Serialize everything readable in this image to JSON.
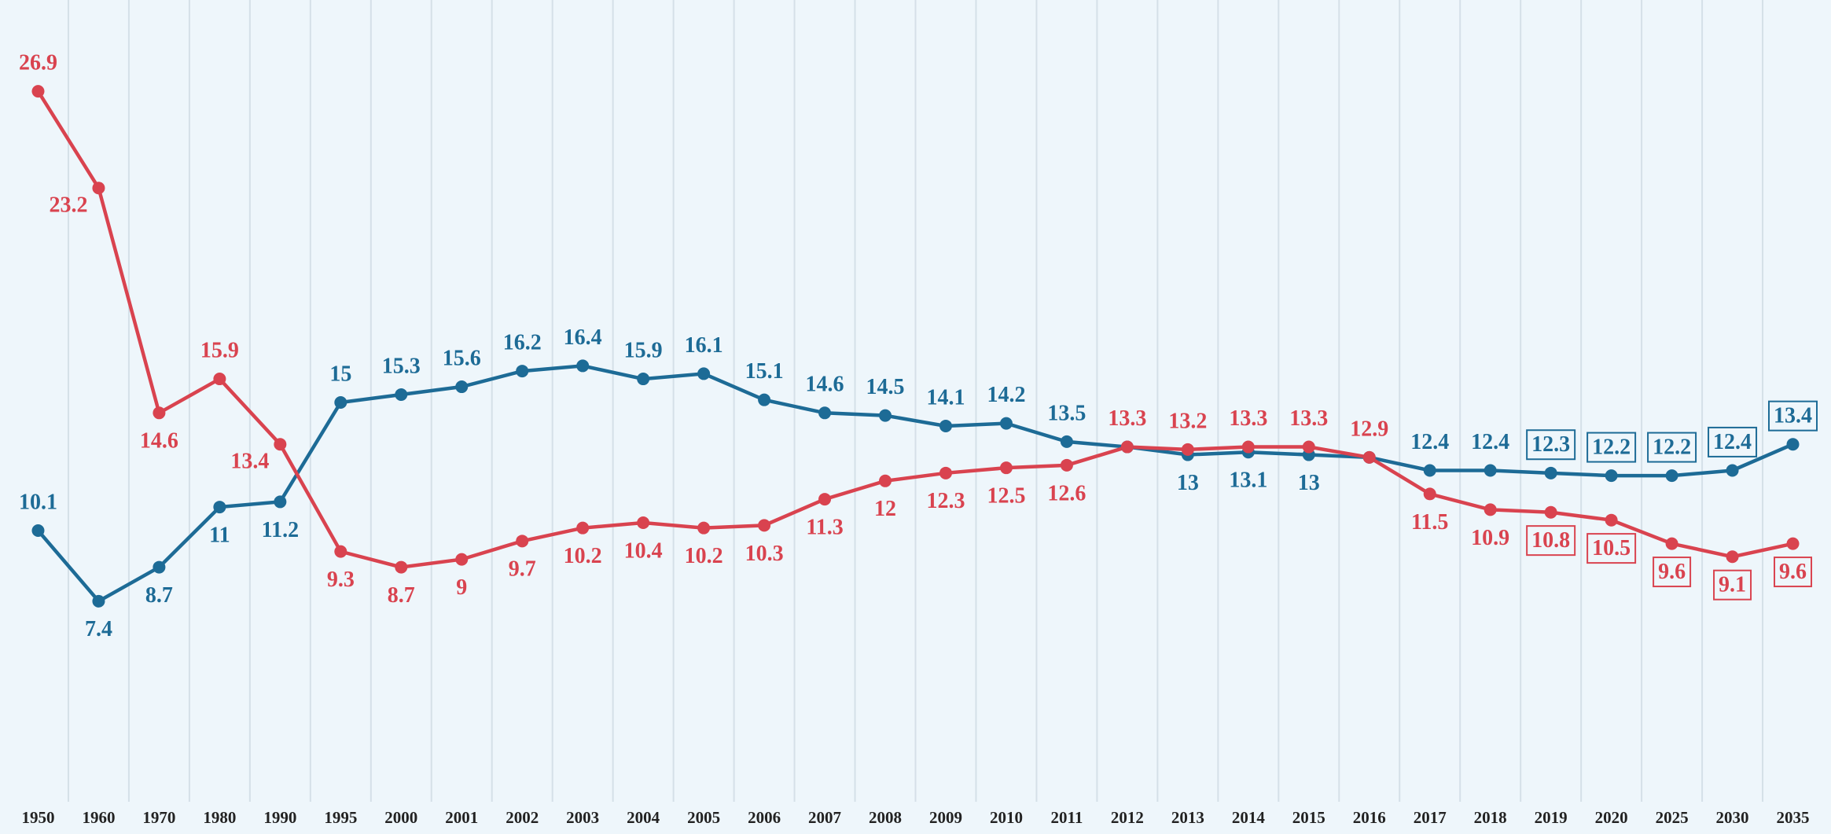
{
  "chart_data": {
    "type": "line",
    "categories": [
      "1950",
      "1960",
      "1970",
      "1980",
      "1990",
      "1995",
      "2000",
      "2001",
      "2002",
      "2003",
      "2004",
      "2005",
      "2006",
      "2007",
      "2008",
      "2009",
      "2010",
      "2011",
      "2012",
      "2013",
      "2014",
      "2015",
      "2016",
      "2017",
      "2018",
      "2019",
      "2020",
      "2025",
      "2030",
      "2035"
    ],
    "series": [
      {
        "color": "#1d6b96",
        "values": [
          10.1,
          7.4,
          8.7,
          11,
          11.2,
          15,
          15.3,
          15.6,
          16.2,
          16.4,
          15.9,
          16.1,
          15.1,
          14.6,
          14.5,
          14.1,
          14.2,
          13.5,
          13.3,
          13,
          13.1,
          13,
          12.9,
          12.4,
          12.4,
          12.3,
          12.2,
          12.2,
          12.4,
          13.4
        ],
        "value_labels": [
          "10.1",
          "7.4",
          "8.7",
          "11",
          "11.2",
          "15",
          "15.3",
          "15.6",
          "16.2",
          "16.4",
          "15.9",
          "16.1",
          "15.1",
          "14.6",
          "14.5",
          "14.1",
          "14.2",
          "13.5",
          null,
          "13",
          "13.1",
          "13",
          null,
          "12.4",
          "12.4",
          "12.3",
          "12.2",
          "12.2",
          "12.4",
          "13.4"
        ]
      },
      {
        "color": "#d9434f",
        "values": [
          26.9,
          23.2,
          14.6,
          15.9,
          13.4,
          9.3,
          8.7,
          9,
          9.7,
          10.2,
          10.4,
          10.2,
          10.3,
          11.3,
          12,
          12.3,
          12.5,
          12.6,
          13.3,
          13.2,
          13.3,
          13.3,
          12.9,
          11.5,
          10.9,
          10.8,
          10.5,
          9.6,
          9.1,
          9.6
        ]
      }
    ],
    "ylim": [
      0,
      30
    ],
    "grid": true
  }
}
